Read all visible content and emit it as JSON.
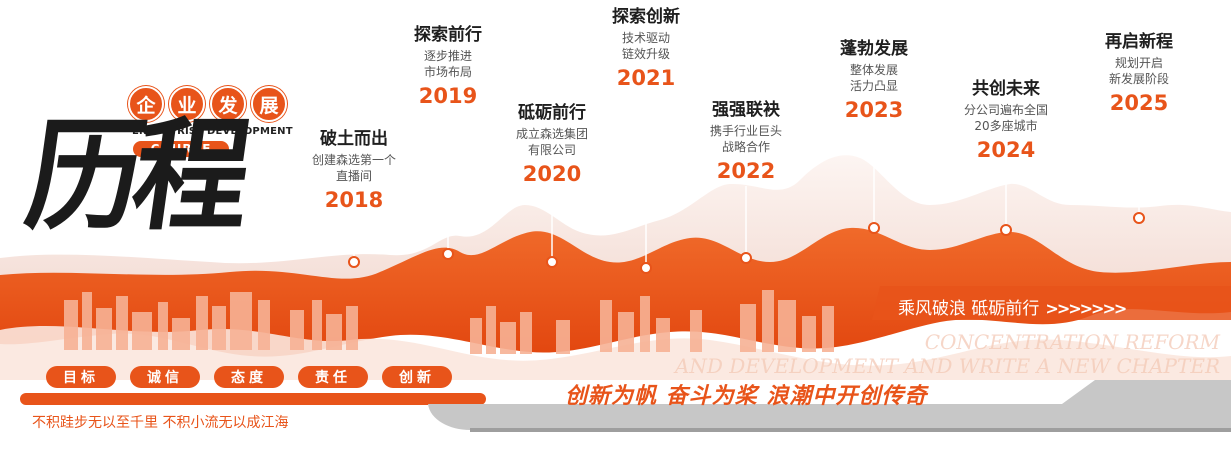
{
  "title": {
    "circle_chars": [
      "企",
      "业",
      "发",
      "展"
    ],
    "english": "ENTERPRISE DEVELOPMENT",
    "course": "COURSE",
    "big": "历程"
  },
  "milestones": [
    {
      "title": "破土而出",
      "desc": "创建森选第一个\n直播间",
      "year": "2018"
    },
    {
      "title": "探索前行",
      "desc": "逐步推进\n市场布局",
      "year": "2019"
    },
    {
      "title": "砥砺前行",
      "desc": "成立森选集团\n有限公司",
      "year": "2020"
    },
    {
      "title": "探索创新",
      "desc": "技术驱动\n链效升级",
      "year": "2021"
    },
    {
      "title": "强强联袂",
      "desc": "携手行业巨头\n战略合作",
      "year": "2022"
    },
    {
      "title": "蓬勃发展",
      "desc": "整体发展\n活力凸显",
      "year": "2023"
    },
    {
      "title": "共创未来",
      "desc": "分公司遍布全国\n20多座城市",
      "year": "2024"
    },
    {
      "title": "再启新程",
      "desc": "规划开启\n新发展阶段",
      "year": "2025"
    }
  ],
  "values": [
    "目标",
    "诚信",
    "态度",
    "责任",
    "创新"
  ],
  "quote": "不积跬步无以至千里   不积小流无以成江海",
  "slogan_main": "创新为帆 奋斗为桨 浪潮中开创传奇",
  "slogan_banner": "乘风破浪 砥砺前行",
  "slogan_arrows": ">>>>>>>",
  "english_watermark": "CONCENTRATION REFORM\nAND DEVELOPMENT AND WRITE A NEW CHAPTER",
  "colors": {
    "accent": "#e8541a",
    "accent_light": "#f7a57e",
    "ink": "#1b1b1b",
    "gray_base": "#b8b8b8"
  }
}
